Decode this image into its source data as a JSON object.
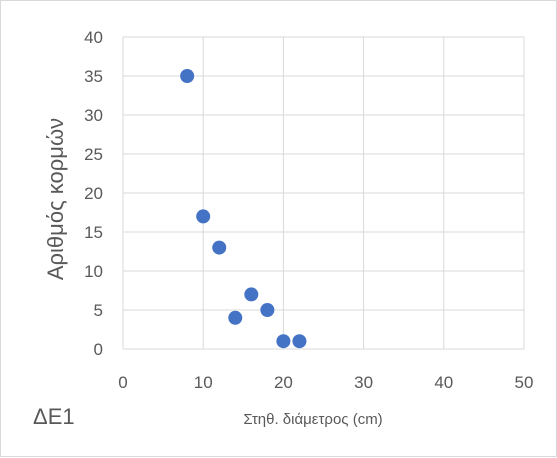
{
  "chart_data": {
    "type": "scatter",
    "panel_label": "ΔΕ1",
    "xlabel": "Στηθ. διάμετρος (cm)",
    "ylabel": "Αριθμός κορμών",
    "xlim": [
      0,
      50
    ],
    "ylim": [
      0,
      40
    ],
    "x_ticks": [
      0,
      10,
      20,
      30,
      40,
      50
    ],
    "y_ticks": [
      0,
      5,
      10,
      15,
      20,
      25,
      30,
      35,
      40
    ],
    "grid": true,
    "legend": "none",
    "colors": {
      "marker": "#4472c4",
      "grid": "#d9d9d9",
      "text": "#595959"
    },
    "series": [
      {
        "points": [
          {
            "x": 8,
            "y": 35
          },
          {
            "x": 10,
            "y": 17
          },
          {
            "x": 12,
            "y": 13
          },
          {
            "x": 14,
            "y": 4
          },
          {
            "x": 16,
            "y": 7
          },
          {
            "x": 18,
            "y": 5
          },
          {
            "x": 20,
            "y": 1
          },
          {
            "x": 22,
            "y": 1
          }
        ]
      }
    ]
  }
}
